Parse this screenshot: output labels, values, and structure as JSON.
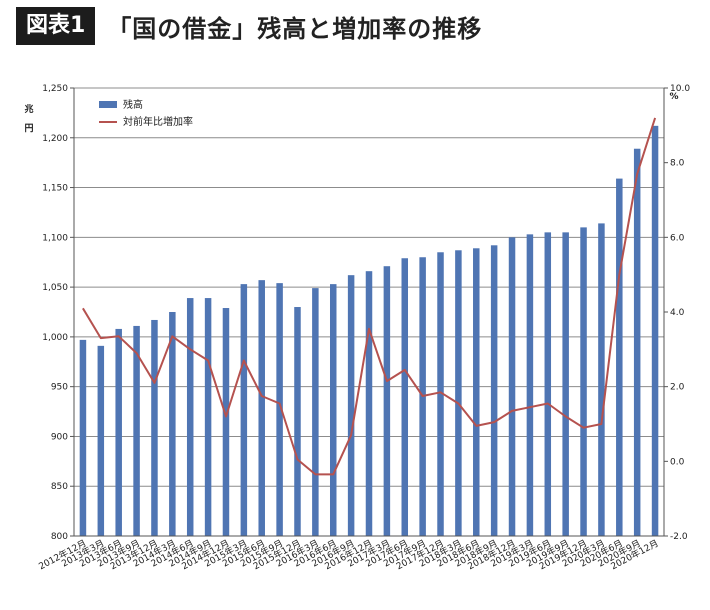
{
  "header": {
    "badge": "図表1",
    "title": "「国の借金」残高と増加率の推移"
  },
  "chart_data": {
    "type": "bar",
    "categories": [
      "2012年12月",
      "2013年3月",
      "2013年6月",
      "2013年9月",
      "2013年12月",
      "2014年3月",
      "2014年6月",
      "2014年9月",
      "2014年12月",
      "2015年3月",
      "2015年6月",
      "2015年9月",
      "2015年12月",
      "2016年3月",
      "2016年6月",
      "2016年9月",
      "2016年12月",
      "2017年3月",
      "2017年6月",
      "2017年9月",
      "2017年12月",
      "2018年3月",
      "2018年6月",
      "2018年9月",
      "2018年12月",
      "2019年3月",
      "2019年6月",
      "2019年9月",
      "2019年12月",
      "2020年3月",
      "2020年6月",
      "2020年9月",
      "2020年12月"
    ],
    "series": [
      {
        "name": "残高",
        "kind": "bar",
        "axis": "left",
        "color": "#4f75b3",
        "values": [
          997,
          991,
          1008,
          1011,
          1017,
          1025,
          1039,
          1039,
          1029,
          1053,
          1057,
          1054,
          1030,
          1049,
          1053,
          1062,
          1066,
          1071,
          1079,
          1080,
          1085,
          1087,
          1089,
          1092,
          1100,
          1103,
          1105,
          1105,
          1110,
          1114,
          1159,
          1189,
          1212
        ]
      },
      {
        "name": "対前年比増加率",
        "kind": "line",
        "axis": "right",
        "color": "#b5524f",
        "values": [
          4.1,
          3.3,
          3.35,
          2.9,
          2.1,
          3.35,
          3.0,
          2.7,
          1.2,
          2.7,
          1.75,
          1.55,
          0.05,
          -0.35,
          -0.35,
          0.7,
          3.55,
          2.15,
          2.45,
          1.75,
          1.85,
          1.55,
          0.95,
          1.05,
          1.35,
          1.45,
          1.55,
          1.2,
          0.9,
          1.0,
          5.0,
          7.7,
          9.2
        ]
      }
    ],
    "y_left": {
      "unit": "兆円",
      "unit_chars": [
        "兆",
        "円"
      ],
      "ylim": [
        800,
        1250
      ],
      "ticks": [
        "800",
        "850",
        "900",
        "950",
        "1,000",
        "1,050",
        "1,100",
        "1,150",
        "1,200",
        "1,250"
      ]
    },
    "y_right": {
      "unit": "%",
      "ylim": [
        -2,
        10
      ],
      "ticks": [
        "-2.0",
        "0.0",
        "2.0",
        "4.0",
        "6.0",
        "8.0",
        "10.0"
      ]
    },
    "grid": true,
    "legend_position": "top-left"
  }
}
